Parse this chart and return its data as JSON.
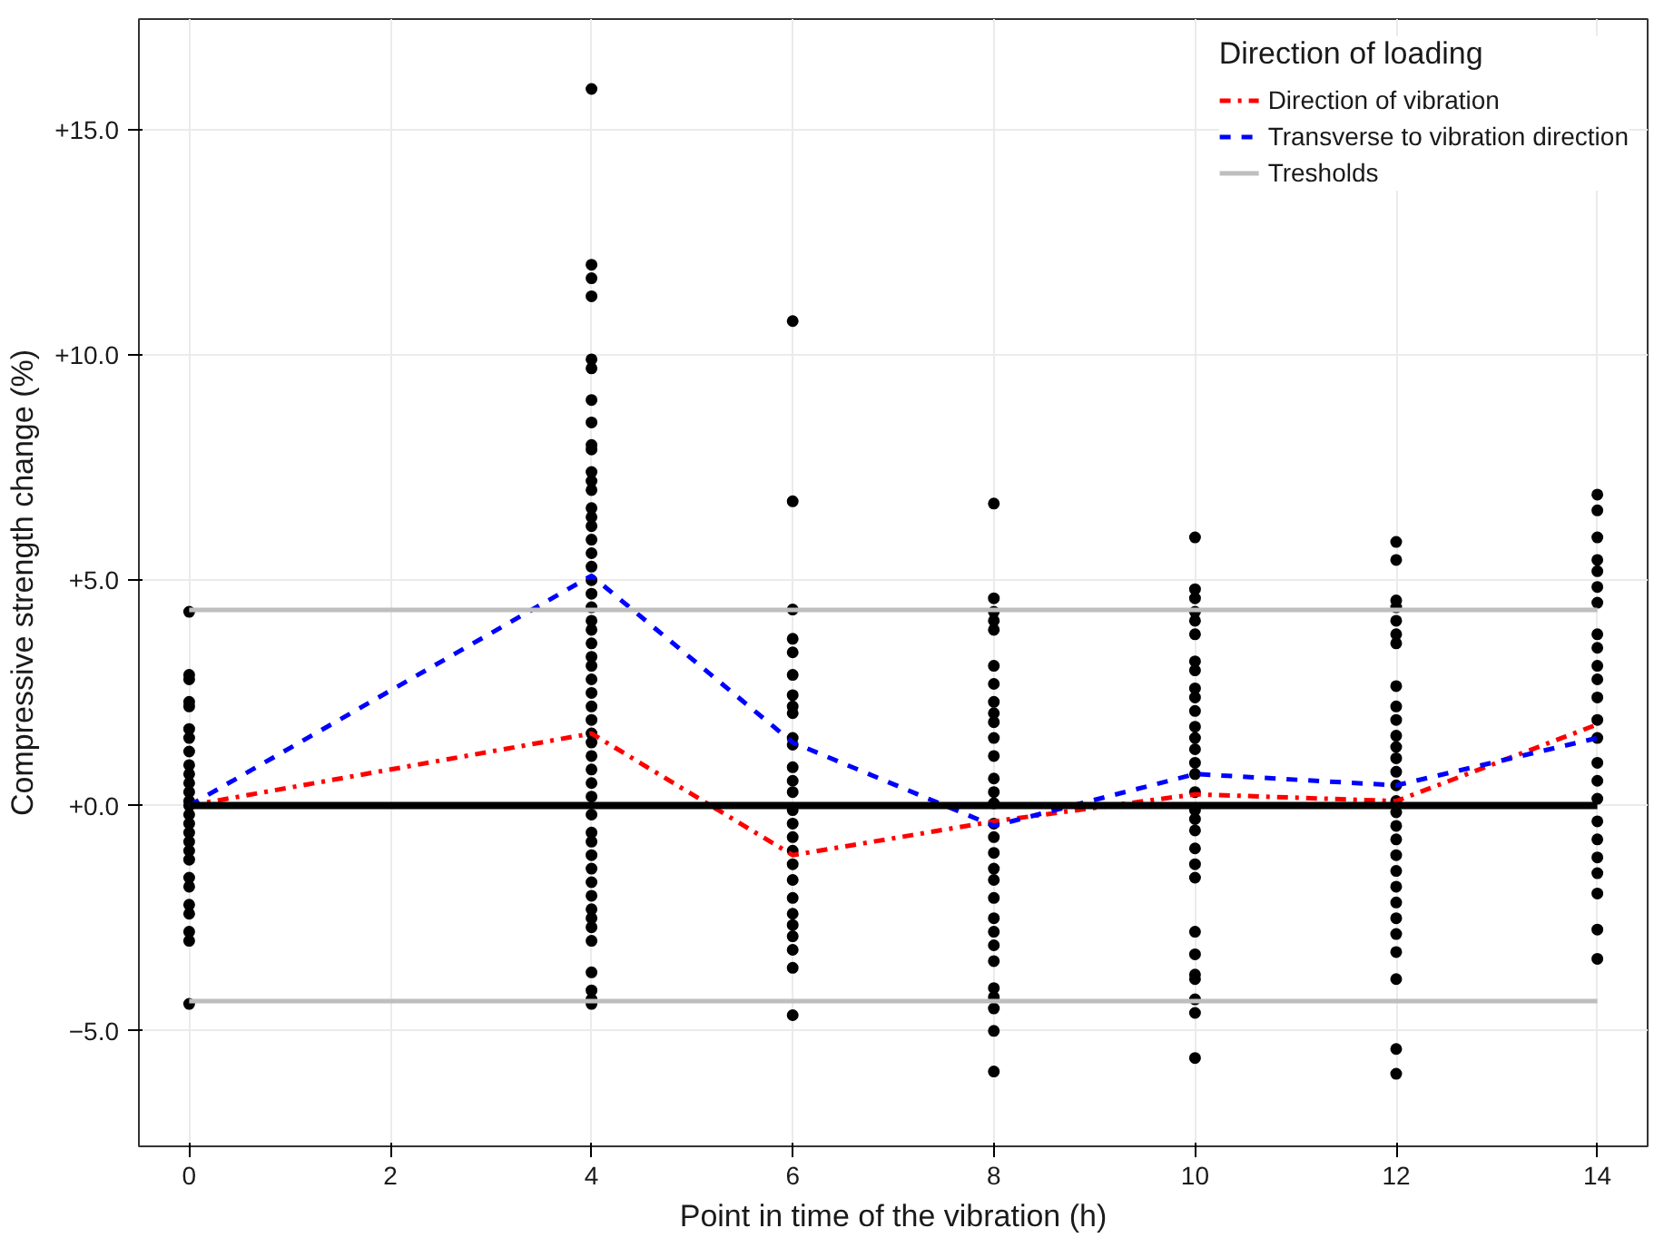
{
  "chart_data": {
    "type": "line",
    "xlabel": "Point in time of the vibration (h)",
    "ylabel": "Compressive strength change (%)",
    "legend_title": "Direction of loading",
    "xlim": [
      -0.5,
      14.5
    ],
    "ylim": [
      -7.56,
      17.45
    ],
    "xticks": [
      0,
      2,
      4,
      6,
      8,
      10,
      12,
      14
    ],
    "yticks": [
      {
        "value": 15,
        "label": "+15.0"
      },
      {
        "value": 10,
        "label": "+10.0"
      },
      {
        "value": 5,
        "label": "+5.0"
      },
      {
        "value": 0,
        "label": "+0.0"
      },
      {
        "value": -5,
        "label": "−5.0"
      }
    ],
    "grid": true,
    "legend": "top right",
    "series": [
      {
        "name": "Direction of vibration",
        "color": "#ff0000",
        "line_style": "dashdot",
        "x": [
          0,
          4,
          6,
          8,
          10,
          12,
          14
        ],
        "values": [
          0,
          1.6,
          -1.1,
          -0.35,
          0.25,
          0.1,
          1.8
        ]
      },
      {
        "name": "Transverse to vibration direction",
        "color": "#0000ff",
        "line_style": "dashed",
        "x": [
          0,
          4,
          6,
          8,
          10,
          12,
          14
        ],
        "values": [
          0,
          5.1,
          1.4,
          -0.45,
          0.7,
          0.45,
          1.5
        ]
      },
      {
        "name": "Tresholds",
        "color": "#bebebe",
        "line_style": "solid",
        "x": [
          0,
          14
        ],
        "values": [
          4.34,
          4.34
        ]
      },
      {
        "color": "#bebebe",
        "line_style": "solid",
        "x": [
          0,
          14
        ],
        "values": [
          -4.34,
          -4.34
        ]
      },
      {
        "color": "#000000",
        "line_style": "solid",
        "x": [
          0,
          14
        ],
        "values": [
          0,
          0
        ]
      },
      {
        "type": "scatter",
        "color": "#000000",
        "marker": "circle",
        "x": [
          0,
          0,
          0,
          0,
          0,
          0,
          0,
          0,
          0,
          0,
          0,
          0,
          0,
          0,
          0,
          0,
          0,
          0,
          0,
          0,
          0,
          0,
          0,
          0,
          0,
          0,
          0,
          4,
          4,
          4,
          4,
          4,
          4,
          4,
          4,
          4,
          4,
          4,
          4,
          4,
          4,
          4,
          4,
          4,
          4,
          4,
          4,
          4,
          4,
          4,
          4,
          4,
          4,
          4,
          4,
          4,
          4,
          4,
          4,
          4,
          4,
          4,
          4,
          4,
          4,
          4,
          4,
          4,
          4,
          4,
          4,
          4,
          4,
          4,
          4,
          4,
          4,
          4,
          4,
          6,
          6,
          6,
          6,
          6,
          6,
          6,
          6,
          6,
          6,
          6,
          6,
          6,
          6,
          6,
          6,
          6,
          6,
          6,
          6,
          6,
          6,
          6,
          6,
          6,
          6,
          6,
          8,
          8,
          8,
          8,
          8,
          8,
          8,
          8,
          8,
          8,
          8,
          8,
          8,
          8,
          8,
          8,
          8,
          8,
          8,
          8,
          8,
          8,
          8,
          8,
          8,
          8,
          8,
          8,
          8,
          8,
          10,
          10,
          10,
          10,
          10,
          10,
          10,
          10,
          10,
          10,
          10,
          10,
          10,
          10,
          10,
          10,
          10,
          10,
          10,
          10,
          10,
          10,
          10,
          10,
          10,
          10,
          10,
          10,
          10,
          10,
          12,
          12,
          12,
          12,
          12,
          12,
          12,
          12,
          12,
          12,
          12,
          12,
          12,
          12,
          12,
          12,
          12,
          12,
          12,
          12,
          12,
          12,
          12,
          12,
          12,
          12,
          12,
          12,
          12,
          14,
          14,
          14,
          14,
          14,
          14,
          14,
          14,
          14,
          14,
          14,
          14,
          14,
          14,
          14,
          14,
          14,
          14,
          14,
          14,
          14,
          14,
          14,
          14
        ],
        "values": [
          4.3,
          2.9,
          2.8,
          2.3,
          2.2,
          1.7,
          1.5,
          1.2,
          0.9,
          0.7,
          0.5,
          0.3,
          0.1,
          0,
          -0.2,
          -0.4,
          -0.6,
          -0.8,
          -1.0,
          -1.2,
          -1.6,
          -1.8,
          -2.2,
          -2.4,
          -2.8,
          -3.0,
          -4.4,
          15.9,
          12.0,
          11.7,
          11.3,
          9.9,
          9.7,
          9.0,
          8.5,
          8.0,
          7.9,
          7.4,
          7.2,
          7.0,
          6.6,
          6.4,
          6.2,
          5.9,
          5.6,
          5.3,
          5.0,
          4.7,
          4.4,
          4.1,
          3.9,
          3.6,
          3.3,
          3.1,
          2.8,
          2.5,
          2.2,
          1.9,
          1.6,
          1.4,
          1.1,
          0.8,
          0.5,
          0.2,
          -0.2,
          -0.6,
          -0.8,
          -1.1,
          -1.4,
          -1.7,
          -2.0,
          -2.3,
          -2.5,
          -2.7,
          -3.0,
          -3.7,
          -4.1,
          -4.3,
          -4.4,
          10.75,
          6.75,
          4.35,
          3.7,
          3.4,
          2.9,
          2.45,
          2.2,
          2.05,
          1.5,
          1.35,
          0.85,
          0.55,
          0.3,
          -0.1,
          -0.4,
          -0.7,
          -1.0,
          -1.3,
          -1.65,
          -2.05,
          -2.4,
          -2.65,
          -2.9,
          -3.2,
          -3.6,
          -4.65,
          6.7,
          4.6,
          4.3,
          4.1,
          3.9,
          3.1,
          2.7,
          2.3,
          2.05,
          1.85,
          1.5,
          1.1,
          0.6,
          0.3,
          0.05,
          -0.4,
          -0.7,
          -1.05,
          -1.4,
          -1.65,
          -2.05,
          -2.5,
          -2.8,
          -3.1,
          -3.45,
          -4.05,
          -4.25,
          -4.5,
          -5.0,
          -5.9,
          5.95,
          4.8,
          4.6,
          4.3,
          4.1,
          3.8,
          3.2,
          3.0,
          2.6,
          2.4,
          2.1,
          1.75,
          1.5,
          1.25,
          0.95,
          0.7,
          0.3,
          -0.1,
          -0.3,
          -0.55,
          -0.95,
          -1.3,
          -1.6,
          -2.8,
          -3.3,
          -3.75,
          -3.85,
          -4.3,
          -4.6,
          -5.6,
          5.85,
          5.45,
          4.55,
          4.4,
          4.1,
          3.8,
          3.6,
          2.65,
          2.2,
          1.9,
          1.55,
          1.3,
          1.05,
          0.75,
          0.45,
          0.1,
          -0.15,
          -0.45,
          -0.75,
          -1.1,
          -1.45,
          -1.8,
          -2.15,
          -2.5,
          -2.85,
          -3.25,
          -3.85,
          -5.4,
          -5.95,
          6.9,
          6.55,
          5.95,
          5.45,
          5.2,
          4.85,
          4.5,
          3.8,
          3.5,
          3.1,
          2.8,
          2.4,
          1.9,
          1.5,
          0.95,
          0.55,
          0.15,
          -0.35,
          -0.75,
          -1.15,
          -1.5,
          -1.95,
          -2.75,
          -3.4
        ]
      }
    ]
  }
}
